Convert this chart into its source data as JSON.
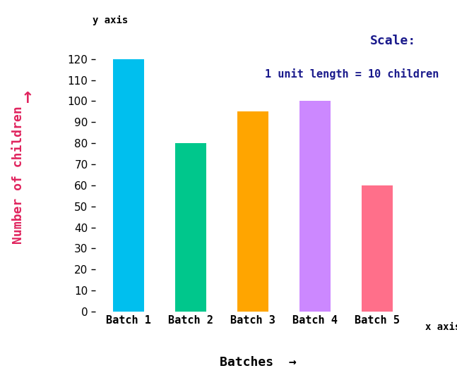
{
  "categories": [
    "Batch 1",
    "Batch 2",
    "Batch 3",
    "Batch 4",
    "Batch 5"
  ],
  "values": [
    120,
    80,
    95,
    100,
    60
  ],
  "bar_colors": [
    "#00BFEE",
    "#00C78C",
    "#FFA500",
    "#CC88FF",
    "#FF6F8A"
  ],
  "xlabel": "Batches",
  "ylabel": "Number of children",
  "xaxis_label": "x axis",
  "yaxis_label": "y axis",
  "ylabel_color": "#E0245E",
  "scale_text_line1": "Scale:",
  "scale_text_line2": "1 unit length = 10 children",
  "scale_color": "#1a1a8c",
  "ylim": [
    0,
    130
  ],
  "yticks": [
    0,
    10,
    20,
    30,
    40,
    50,
    60,
    70,
    80,
    90,
    100,
    110,
    120
  ],
  "bar_width": 0.5,
  "background_color": "#FFFFFF",
  "tick_label_fontsize": 11,
  "category_fontsize": 11
}
